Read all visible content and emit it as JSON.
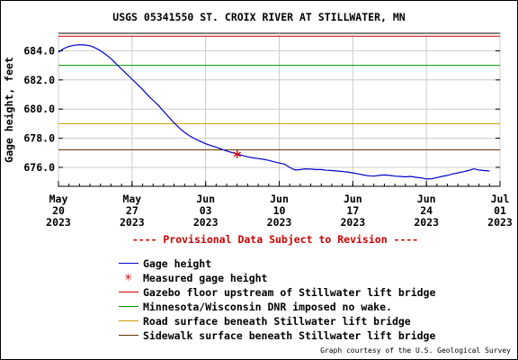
{
  "title": "USGS 05341550 ST. CROIX RIVER AT STILLWATER, MN",
  "notice": "---- Provisional Data Subject to Revision ----",
  "credit": "Graph courtesy of the U.S. Geological Survey",
  "colors": {
    "gage": "#0000cc",
    "measured": "#cc0000",
    "gazebo": "#cc0000",
    "nowake": "#009900",
    "road": "#cc9900",
    "sidewalk": "#663300"
  },
  "legend": [
    {
      "key": "gage",
      "label": "Gage height",
      "style": "line",
      "color": "#0000cc"
    },
    {
      "key": "measured",
      "label": "Measured gage height",
      "style": "star",
      "color": "#cc0000"
    },
    {
      "key": "gazebo",
      "label": "Gazebo floor upstream of Stillwater lift bridge",
      "style": "line",
      "color": "#cc0000"
    },
    {
      "key": "nowake",
      "label": "Minnesota/Wisconsin DNR imposed no wake.",
      "style": "line",
      "color": "#009900"
    },
    {
      "key": "road",
      "label": "Road surface beneath Stillwater lift bridge",
      "style": "line",
      "color": "#cc9900"
    },
    {
      "key": "sidewalk",
      "label": "Sidewalk surface beneath Stillwater lift bridge",
      "style": "line",
      "color": "#663300"
    }
  ],
  "chart_data": {
    "type": "line",
    "title": "USGS 05341550 ST. CROIX RIVER AT STILLWATER, MN",
    "ylabel": "Gage height, feet",
    "xlabel": "",
    "xlim": [
      "2023-05-20",
      "2023-07-01"
    ],
    "ylim": [
      674.7,
      685.2
    ],
    "grid": true,
    "y_ticks": [
      "676.0",
      "678.0",
      "680.0",
      "682.0",
      "684.0"
    ],
    "x_ticks": [
      {
        "date": "2023-05-20",
        "lines": [
          "May",
          "20",
          "2023"
        ]
      },
      {
        "date": "2023-05-27",
        "lines": [
          "May",
          "27",
          "2023"
        ]
      },
      {
        "date": "2023-06-03",
        "lines": [
          "Jun",
          "03",
          "2023"
        ]
      },
      {
        "date": "2023-06-10",
        "lines": [
          "Jun",
          "10",
          "2023"
        ]
      },
      {
        "date": "2023-06-17",
        "lines": [
          "Jun",
          "17",
          "2023"
        ]
      },
      {
        "date": "2023-06-24",
        "lines": [
          "Jun",
          "24",
          "2023"
        ]
      },
      {
        "date": "2023-07-01",
        "lines": [
          "Jul",
          "01",
          "2023"
        ]
      }
    ],
    "reference_lines": [
      {
        "name": "Gazebo floor upstream of Stillwater lift bridge",
        "y": 685.0,
        "color": "#cc0000"
      },
      {
        "name": "Minnesota/Wisconsin DNR imposed no wake.",
        "y": 683.0,
        "color": "#009900"
      },
      {
        "name": "Road surface beneath Stillwater lift bridge",
        "y": 679.0,
        "color": "#cc9900"
      },
      {
        "name": "Sidewalk surface beneath Stillwater lift bridge",
        "y": 677.2,
        "color": "#663300"
      }
    ],
    "series": [
      {
        "name": "Gage height",
        "color": "#0000cc",
        "points": [
          [
            "2023-05-20 00:00",
            683.9
          ],
          [
            "2023-05-20 12:00",
            684.15
          ],
          [
            "2023-05-21 00:00",
            684.3
          ],
          [
            "2023-05-21 12:00",
            684.38
          ],
          [
            "2023-05-22 00:00",
            684.42
          ],
          [
            "2023-05-22 12:00",
            684.4
          ],
          [
            "2023-05-23 00:00",
            684.35
          ],
          [
            "2023-05-23 12:00",
            684.2
          ],
          [
            "2023-05-24 00:00",
            684.0
          ],
          [
            "2023-05-24 12:00",
            683.75
          ],
          [
            "2023-05-25 00:00",
            683.45
          ],
          [
            "2023-05-25 12:00",
            683.1
          ],
          [
            "2023-05-26 00:00",
            682.75
          ],
          [
            "2023-05-26 12:00",
            682.4
          ],
          [
            "2023-05-27 00:00",
            682.05
          ],
          [
            "2023-05-27 12:00",
            681.7
          ],
          [
            "2023-05-28 00:00",
            681.35
          ],
          [
            "2023-05-28 12:00",
            680.95
          ],
          [
            "2023-05-29 00:00",
            680.6
          ],
          [
            "2023-05-29 12:00",
            680.25
          ],
          [
            "2023-05-30 00:00",
            679.85
          ],
          [
            "2023-05-30 12:00",
            679.45
          ],
          [
            "2023-05-31 00:00",
            679.05
          ],
          [
            "2023-05-31 12:00",
            678.7
          ],
          [
            "2023-06-01 00:00",
            678.4
          ],
          [
            "2023-06-01 12:00",
            678.15
          ],
          [
            "2023-06-02 00:00",
            677.95
          ],
          [
            "2023-06-02 12:00",
            677.78
          ],
          [
            "2023-06-03 00:00",
            677.62
          ],
          [
            "2023-06-03 12:00",
            677.5
          ],
          [
            "2023-06-04 00:00",
            677.38
          ],
          [
            "2023-06-04 12:00",
            677.25
          ],
          [
            "2023-06-05 00:00",
            677.12
          ],
          [
            "2023-06-05 12:00",
            677.02
          ],
          [
            "2023-06-06 00:00",
            676.92
          ],
          [
            "2023-06-06 12:00",
            676.82
          ],
          [
            "2023-06-07 00:00",
            676.72
          ],
          [
            "2023-06-07 12:00",
            676.65
          ],
          [
            "2023-06-08 00:00",
            676.6
          ],
          [
            "2023-06-08 12:00",
            676.55
          ],
          [
            "2023-06-09 00:00",
            676.48
          ],
          [
            "2023-06-09 12:00",
            676.38
          ],
          [
            "2023-06-10 00:00",
            676.3
          ],
          [
            "2023-06-10 12:00",
            676.22
          ],
          [
            "2023-06-11 00:00",
            676.0
          ],
          [
            "2023-06-11 12:00",
            675.82
          ],
          [
            "2023-06-12 00:00",
            675.85
          ],
          [
            "2023-06-12 12:00",
            675.9
          ],
          [
            "2023-06-13 00:00",
            675.88
          ],
          [
            "2023-06-13 12:00",
            675.85
          ],
          [
            "2023-06-14 00:00",
            675.85
          ],
          [
            "2023-06-14 12:00",
            675.8
          ],
          [
            "2023-06-15 00:00",
            675.78
          ],
          [
            "2023-06-15 12:00",
            675.75
          ],
          [
            "2023-06-16 00:00",
            675.72
          ],
          [
            "2023-06-16 12:00",
            675.68
          ],
          [
            "2023-06-17 00:00",
            675.62
          ],
          [
            "2023-06-17 12:00",
            675.55
          ],
          [
            "2023-06-18 00:00",
            675.48
          ],
          [
            "2023-06-18 12:00",
            675.42
          ],
          [
            "2023-06-19 00:00",
            675.4
          ],
          [
            "2023-06-19 12:00",
            675.45
          ],
          [
            "2023-06-20 00:00",
            675.48
          ],
          [
            "2023-06-20 12:00",
            675.45
          ],
          [
            "2023-06-21 00:00",
            675.4
          ],
          [
            "2023-06-21 12:00",
            675.38
          ],
          [
            "2023-06-22 00:00",
            675.35
          ],
          [
            "2023-06-22 12:00",
            675.38
          ],
          [
            "2023-06-23 00:00",
            675.32
          ],
          [
            "2023-06-23 12:00",
            675.28
          ],
          [
            "2023-06-24 00:00",
            675.2
          ],
          [
            "2023-06-24 12:00",
            675.22
          ],
          [
            "2023-06-25 00:00",
            675.3
          ],
          [
            "2023-06-25 12:00",
            675.38
          ],
          [
            "2023-06-26 00:00",
            675.45
          ],
          [
            "2023-06-26 12:00",
            675.55
          ],
          [
            "2023-06-27 00:00",
            675.62
          ],
          [
            "2023-06-27 12:00",
            675.7
          ],
          [
            "2023-06-28 00:00",
            675.78
          ],
          [
            "2023-06-28 12:00",
            675.9
          ],
          [
            "2023-06-29 00:00",
            675.82
          ],
          [
            "2023-06-29 12:00",
            675.78
          ],
          [
            "2023-06-30 00:00",
            675.75
          ]
        ]
      }
    ],
    "measured": [
      {
        "name": "Measured gage height",
        "x": "2023-06-06 00:00",
        "y": 676.9,
        "color": "#cc0000"
      }
    ]
  }
}
